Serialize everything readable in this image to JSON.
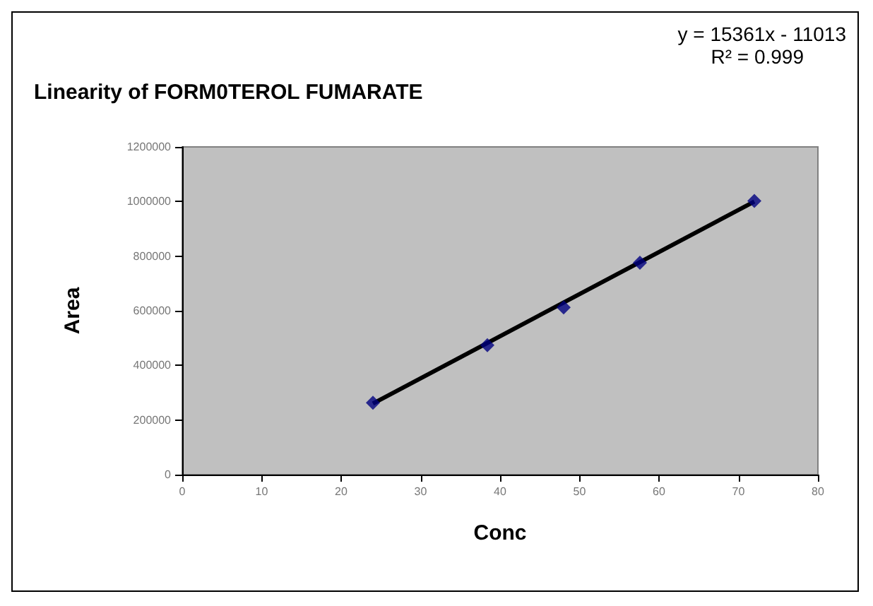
{
  "chart_data": {
    "type": "scatter",
    "title": "Linearity of FORM0TEROL FUMARATE",
    "xlabel": "Conc",
    "ylabel": "Area",
    "annotations": [
      "y = 15361x - 11013",
      "R² = 0.999"
    ],
    "series": [
      {
        "color": "#000080",
        "x": [
          24,
          38.4,
          48,
          57.6,
          72
        ],
        "values": [
          263000,
          474000,
          612000,
          776000,
          1002000
        ],
        "marker": "diamond"
      },
      {
        "type": "line",
        "color": "#000000",
        "x": [
          24,
          72
        ],
        "values": [
          260000,
          1000000
        ],
        "marker": "none",
        "line_style": "solid"
      }
    ],
    "xlim": [
      0,
      80
    ],
    "xticks": [
      0,
      10,
      20,
      30,
      40,
      50,
      60,
      70,
      80
    ],
    "ylim": [
      0,
      1200000
    ],
    "yticks": [
      0,
      200000,
      400000,
      600000,
      800000,
      1000000,
      1200000
    ],
    "grid": false
  }
}
